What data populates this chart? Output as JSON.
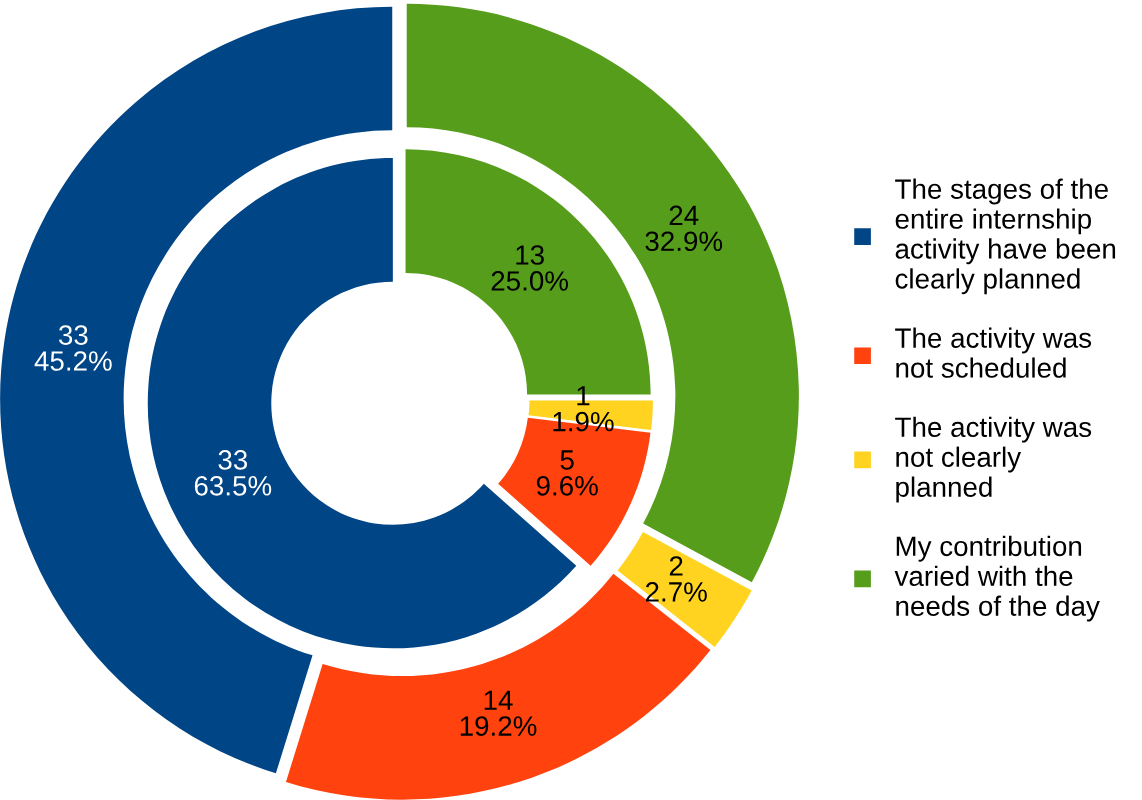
{
  "chart_data": {
    "type": "donut",
    "categories": [
      "The stages of the\nentire internship\nactivity have been\nclearly planned",
      "The activity was\nnot scheduled",
      "The activity was\nnot clearly\nplanned",
      "My contribution\nvaried with the\nneeds of the day"
    ],
    "colors": [
      "#004586",
      "#ff420e",
      "#ffd320",
      "#579d1c"
    ],
    "series": [
      {
        "values": [
          33,
          14,
          2,
          24
        ],
        "value_labels": [
          "33\n45.2%",
          "14\n19.2%",
          "2\n2.7%",
          "24\n32.9%"
        ]
      },
      {
        "values": [
          33,
          5,
          1,
          13
        ],
        "value_labels": [
          "33\n63.5%",
          "5\n9.6%",
          "1\n1.9%",
          "13\n25.0%"
        ]
      }
    ],
    "legend": "right"
  }
}
